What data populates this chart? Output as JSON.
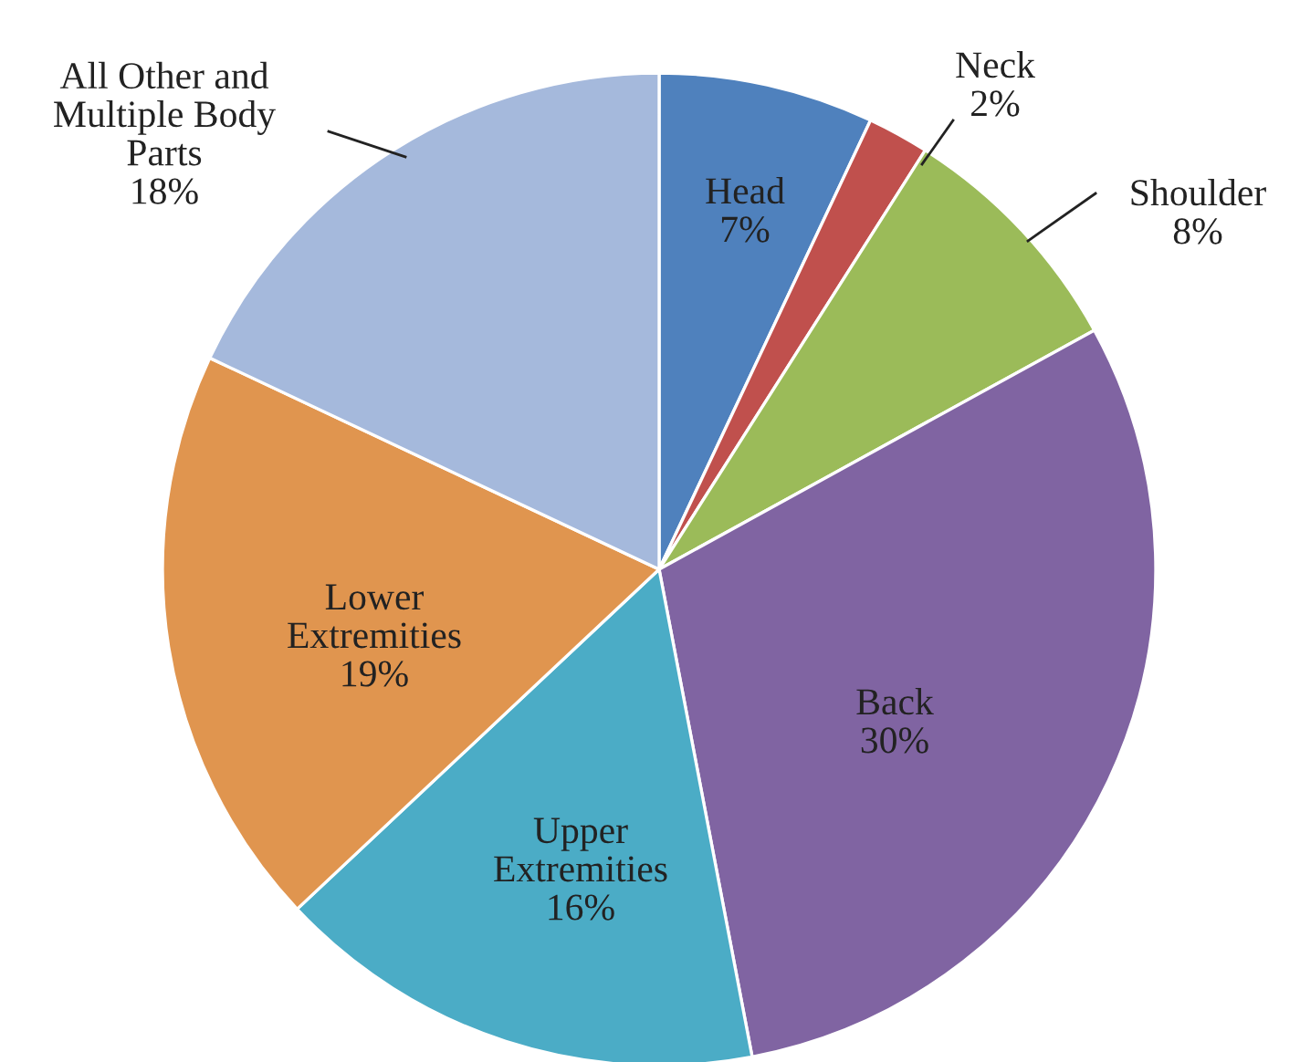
{
  "chart_data": {
    "type": "pie",
    "categories": [
      "Head",
      "Neck",
      "Shoulder",
      "Back",
      "Upper Extremities",
      "Lower Extremities",
      "All Other and Multiple Body Parts"
    ],
    "values": [
      7,
      2,
      8,
      30,
      16,
      19,
      18
    ],
    "colors": [
      "#4f81bd",
      "#c0504d",
      "#9bbb59",
      "#8064a2",
      "#4bacc6",
      "#e0954f",
      "#a5b9dc"
    ],
    "value_labels": [
      "7%",
      "2%",
      "8%",
      "30%",
      "16%",
      "19%",
      "18%"
    ]
  }
}
